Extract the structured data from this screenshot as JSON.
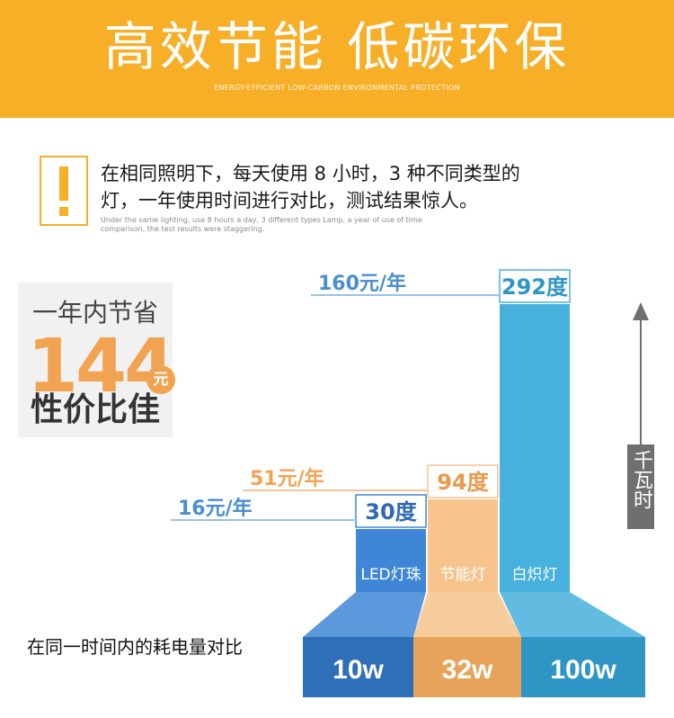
{
  "header": {
    "title": "高效节能 低碳环保",
    "subtitle": "ENERGY-EFFICIENT LOW-CARBON ENVIRONMENTAL PROTECTION"
  },
  "intro": {
    "text_cn_line1": "在相同照明下，每天使用 8 小时，3 种不同类型的",
    "text_cn_line2": "灯，一年使用时间进行对比，测试结果惊人。",
    "text_en_line1": "Under the same lighting, use 8 hours a day, 3 different types Lamp, a year of use of time",
    "text_en_line2": "comparison, the test results were staggering."
  },
  "savings": {
    "top": "一年内节省",
    "amount": "144",
    "unit": "元",
    "bottom": "性价比佳"
  },
  "comparison_caption": "在同一时间内的耗电量对比",
  "axis_unit_label": "千瓦时",
  "colors": {
    "banner": "#f7af28",
    "led": "#3f86d6",
    "cfl": "#f7c48d",
    "incandescent": "#47b0dc"
  },
  "chart_data": {
    "type": "bar",
    "categories": [
      "LED灯珠",
      "节能灯",
      "白炽灯"
    ],
    "series": [
      {
        "name": "",
        "values": [
          30,
          94,
          292
        ],
        "value_labels": [
          "30度",
          "94度",
          "292度"
        ],
        "cost_labels": [
          "16元/年",
          "51元/年",
          "160元/年"
        ],
        "power_labels": [
          "10w",
          "32w",
          "100w"
        ]
      }
    ],
    "ylabel": "千瓦时"
  }
}
